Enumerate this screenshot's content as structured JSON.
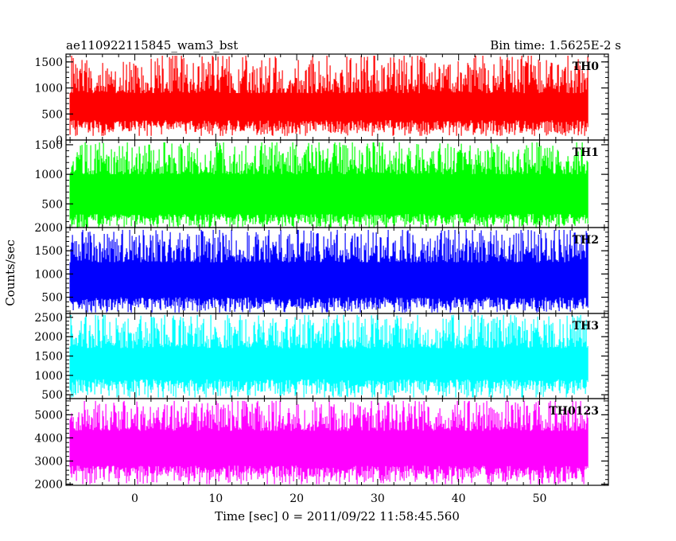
{
  "header": {
    "left_title": "ae110922115845_wam3_bst",
    "right_title": "Bin time: 1.5625E-2 s"
  },
  "chart_data": {
    "type": "line",
    "xlabel": "Time [sec] 0 = 2011/09/22 11:58:45.560",
    "ylabel": "Counts/sec",
    "xlim": [
      -8.5,
      58.5
    ],
    "x_ticks": [
      0,
      10,
      20,
      30,
      40,
      50
    ],
    "x_minor_step": 2,
    "data_x_range": [
      -8.0,
      56.0
    ],
    "bin_time": 0.015625,
    "grid": false,
    "panels": [
      {
        "name": "TH0",
        "color": "#ff0000",
        "ylim": [
          0,
          1650
        ],
        "y_ticks": [
          0,
          500,
          1000,
          1500
        ],
        "y_minor_step": 100,
        "band": {
          "low_min": 80,
          "low_max": 380,
          "high_min": 900,
          "high_max": 1620
        },
        "typical_level": 700
      },
      {
        "name": "TH1",
        "color": "#00ff00",
        "ylim": [
          100,
          1580
        ],
        "y_ticks": [
          500,
          1000,
          1500
        ],
        "y_minor_step": 100,
        "band": {
          "low_min": 90,
          "low_max": 330,
          "high_min": 1000,
          "high_max": 1540
        },
        "typical_level": 720
      },
      {
        "name": "TH2",
        "color": "#0000ff",
        "ylim": [
          150,
          2000
        ],
        "y_ticks": [
          500,
          1000,
          1500,
          2000
        ],
        "y_minor_step": 100,
        "band": {
          "low_min": 170,
          "low_max": 500,
          "high_min": 1250,
          "high_max": 1950
        },
        "typical_level": 950
      },
      {
        "name": "TH3",
        "color": "#00ffff",
        "ylim": [
          400,
          2600
        ],
        "y_ticks": [
          500,
          1000,
          1500,
          2000,
          2500
        ],
        "y_minor_step": 100,
        "band": {
          "low_min": 430,
          "low_max": 900,
          "high_min": 1700,
          "high_max": 2560
        },
        "typical_level": 1350
      },
      {
        "name": "TH0123",
        "color": "#ff00ff",
        "ylim": [
          1950,
          5700
        ],
        "y_ticks": [
          2000,
          3000,
          4000,
          5000
        ],
        "y_minor_step": 200,
        "band": {
          "low_min": 2000,
          "low_max": 2800,
          "high_min": 4300,
          "high_max": 5600
        },
        "typical_level": 3300
      }
    ]
  }
}
